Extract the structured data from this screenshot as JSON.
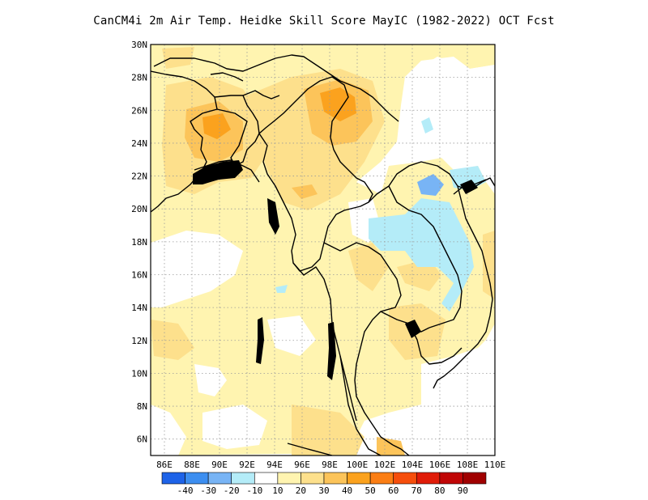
{
  "title": "CanCM4i 2m Air Temp. Heidke Skill Score MayIC (1982-2022) OCT Fcst",
  "map": {
    "lon_range": [
      85,
      110
    ],
    "lat_range": [
      5,
      30
    ],
    "x_ticks": [
      "86E",
      "88E",
      "90E",
      "92E",
      "94E",
      "96E",
      "98E",
      "100E",
      "102E",
      "104E",
      "106E",
      "108E",
      "110E"
    ],
    "y_ticks": [
      "6N",
      "8N",
      "10N",
      "12N",
      "14N",
      "16N",
      "18N",
      "20N",
      "22N",
      "24N",
      "26N",
      "28N",
      "30N"
    ],
    "grid": true
  },
  "colorbar": {
    "colors": [
      "#1e63e8",
      "#3c8ef0",
      "#78b4f5",
      "#b4ecf8",
      "#ffffff",
      "#fff4b0",
      "#fde08c",
      "#fcc45a",
      "#fba21e",
      "#fb7e14",
      "#f64e0c",
      "#e01c08",
      "#c00606",
      "#a00000"
    ],
    "labels": [
      "-40",
      "-30",
      "-20",
      "-10",
      "10",
      "20",
      "30",
      "40",
      "50",
      "60",
      "70",
      "80",
      "90"
    ]
  }
}
